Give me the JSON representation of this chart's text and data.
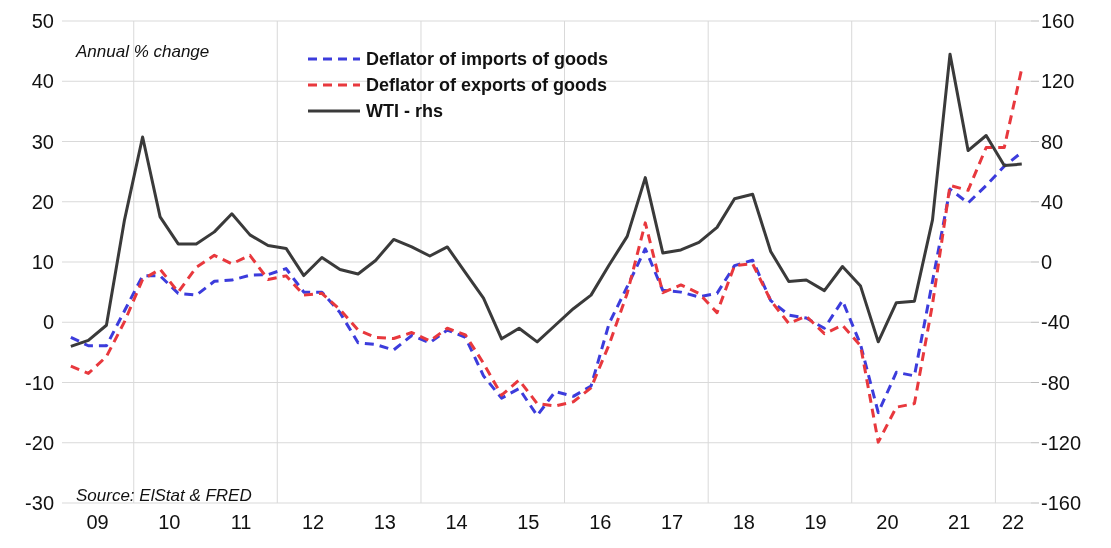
{
  "chart_data": {
    "type": "line",
    "annotations": [
      "Annual % change",
      "Source: ElStat & FRED"
    ],
    "x": [
      "2009-02-15",
      "2009-05-15",
      "2009-08-15",
      "2009-11-15",
      "2010-02-15",
      "2010-05-15",
      "2010-08-15",
      "2010-11-15",
      "2011-02-15",
      "2011-05-15",
      "2011-08-15",
      "2011-11-15",
      "2012-02-15",
      "2012-05-15",
      "2012-08-15",
      "2012-11-15",
      "2013-02-15",
      "2013-05-15",
      "2013-08-15",
      "2013-11-15",
      "2014-02-15",
      "2014-05-15",
      "2014-08-15",
      "2014-11-15",
      "2015-02-15",
      "2015-05-15",
      "2015-08-15",
      "2015-11-15",
      "2016-02-15",
      "2016-05-15",
      "2016-08-15",
      "2016-11-15",
      "2017-02-15",
      "2017-05-15",
      "2017-08-15",
      "2017-11-15",
      "2018-02-15",
      "2018-05-15",
      "2018-08-15",
      "2018-11-15",
      "2019-02-15",
      "2019-05-15",
      "2019-08-15",
      "2019-11-15",
      "2020-02-15",
      "2020-05-15",
      "2020-08-15",
      "2020-11-15",
      "2021-02-15",
      "2021-05-15",
      "2021-08-15",
      "2021-11-15",
      "2022-02-15",
      "2022-05-15"
    ],
    "series": [
      {
        "name": "Deflator of imports of goods",
        "color": "#3c3cdc",
        "line_style": "dashed",
        "values": [
          -2.5,
          -3.9,
          -3.9,
          1.9,
          7.7,
          7.7,
          4.8,
          4.5,
          6.8,
          7.0,
          7.8,
          7.9,
          8.9,
          5.0,
          5.0,
          1.6,
          -3.4,
          -3.7,
          -4.6,
          -2.2,
          -3.4,
          -1.3,
          -2.5,
          -8.9,
          -12.6,
          -11.0,
          -15.5,
          -11.5,
          -12.3,
          -10.6,
          -0.2,
          5.9,
          12.2,
          5.3,
          5.0,
          4.2,
          4.8,
          9.4,
          10.3,
          3.6,
          1.2,
          0.7,
          -1.0,
          3.6,
          -3.7,
          -15.0,
          -8.3,
          -8.9,
          6.8,
          22.1,
          19.8,
          22.7,
          25.9,
          28.2
        ]
      },
      {
        "name": "Deflator of exports of goods",
        "color": "#e8383d",
        "line_style": "dashed",
        "values": [
          -7.3,
          -8.5,
          -5.7,
          0.1,
          7.1,
          8.8,
          5.0,
          9.1,
          11.1,
          9.7,
          11.1,
          7.1,
          7.7,
          4.5,
          4.8,
          2.1,
          -1.3,
          -2.5,
          -2.7,
          -1.7,
          -3.1,
          -1.0,
          -2.1,
          -6.8,
          -12.1,
          -9.6,
          -13.5,
          -13.9,
          -13.2,
          -10.9,
          -3.7,
          4.8,
          16.5,
          4.9,
          6.2,
          4.8,
          1.6,
          9.4,
          9.7,
          3.6,
          -0.2,
          1.0,
          -1.9,
          -0.5,
          -3.9,
          -19.9,
          -14.1,
          -13.5,
          3.0,
          22.7,
          21.9,
          29.0,
          29.0,
          42.1
        ]
      },
      {
        "name": "WTI - rhs",
        "color": "#3a3a3a",
        "line_style": "solid",
        "axis": "y2",
        "values": [
          -56,
          -52,
          -42,
          28,
          83,
          30,
          12,
          12,
          20,
          32,
          18,
          11,
          9,
          -9,
          3,
          -5,
          -8,
          1,
          15,
          10,
          4,
          10,
          -7,
          -24,
          -51,
          -44,
          -53,
          -42,
          -31,
          -22,
          -2,
          17,
          56,
          6,
          8,
          13,
          23,
          42,
          45,
          7,
          -13,
          -12,
          -19,
          -3,
          -16,
          -53,
          -27,
          -26,
          28,
          138,
          74,
          84,
          64,
          65
        ]
      }
    ],
    "xlim": [
      "2009-01-01",
      "2022-07-01"
    ],
    "xticks": [
      {
        "value": "2009-07-01",
        "label": "09"
      },
      {
        "value": "2010-01-01",
        "label": null
      },
      {
        "value": "2010-07-01",
        "label": "10"
      },
      {
        "value": "2011-07-01",
        "label": "11"
      },
      {
        "value": "2012-01-01",
        "label": null
      },
      {
        "value": "2012-07-01",
        "label": "12"
      },
      {
        "value": "2013-07-01",
        "label": "13"
      },
      {
        "value": "2014-01-01",
        "label": null
      },
      {
        "value": "2014-07-01",
        "label": "14"
      },
      {
        "value": "2015-07-01",
        "label": "15"
      },
      {
        "value": "2016-01-01",
        "label": null
      },
      {
        "value": "2016-07-01",
        "label": "16"
      },
      {
        "value": "2017-07-01",
        "label": "17"
      },
      {
        "value": "2018-01-01",
        "label": null
      },
      {
        "value": "2018-07-01",
        "label": "18"
      },
      {
        "value": "2019-07-01",
        "label": "19"
      },
      {
        "value": "2020-01-01",
        "label": null
      },
      {
        "value": "2020-07-01",
        "label": "20"
      },
      {
        "value": "2021-07-01",
        "label": "21"
      },
      {
        "value": "2022-01-01",
        "label": null
      },
      {
        "value": "2022-04-01",
        "label": "22"
      }
    ],
    "ylim": [
      -30,
      50
    ],
    "yticks": [
      -30,
      -20,
      -10,
      0,
      10,
      20,
      30,
      40,
      50
    ],
    "y2lim": [
      -160,
      160
    ],
    "y2ticks": [
      -160,
      -120,
      -80,
      -40,
      0,
      40,
      80,
      120,
      160
    ],
    "grid": true,
    "legend": "top",
    "marker": "none"
  }
}
